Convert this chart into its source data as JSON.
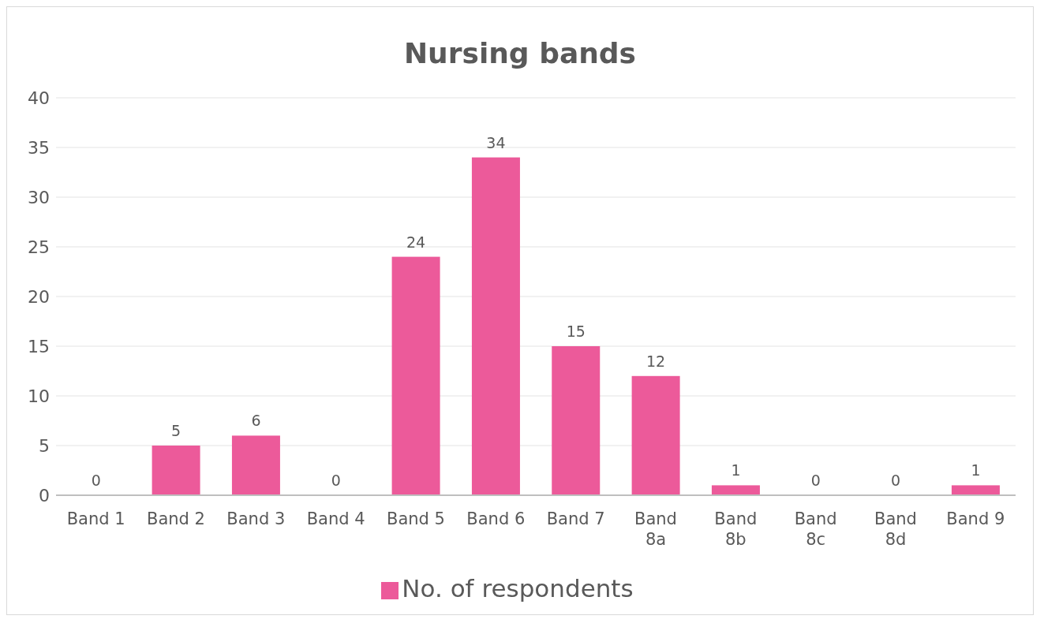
{
  "chart_data": {
    "type": "bar",
    "title": "Nursing bands",
    "categories": [
      "Band 1",
      "Band 2",
      "Band 3",
      "Band 4",
      "Band 5",
      "Band 6",
      "Band 7",
      "Band 8a",
      "Band 8b",
      "Band 8c",
      "Band 8d",
      "Band 9"
    ],
    "series": [
      {
        "name": "No. of respondents",
        "color": "#ec5a9a",
        "values": [
          0,
          5,
          6,
          0,
          24,
          34,
          15,
          12,
          1,
          0,
          0,
          1
        ]
      }
    ],
    "ylim": [
      0,
      40
    ],
    "yticks": [
      0,
      5,
      10,
      15,
      20,
      25,
      30,
      35,
      40
    ],
    "grid": "y",
    "legend": "bottom",
    "data_labels": true
  }
}
